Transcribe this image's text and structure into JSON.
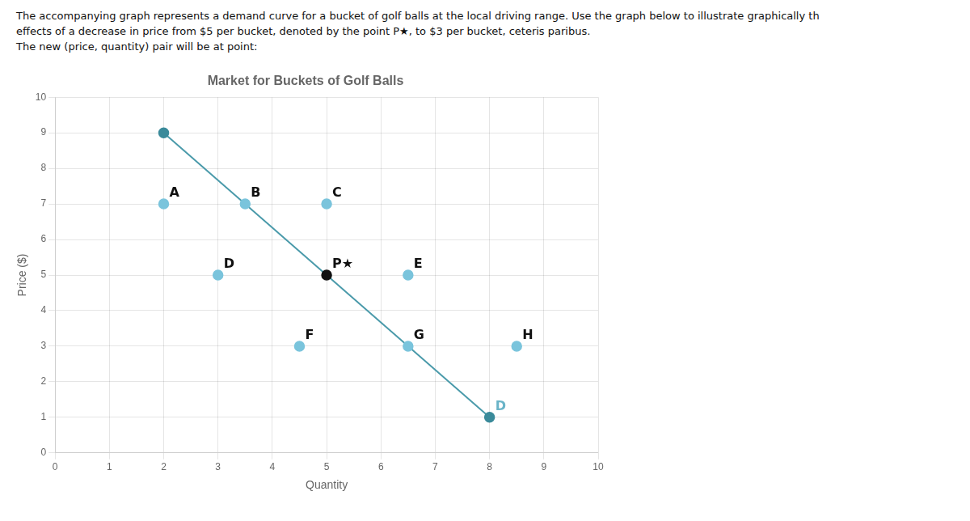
{
  "chart_data": {
    "type": "scatter",
    "title": "Market for Buckets of Golf Balls",
    "subtitle": [
      "The accompanying graph represents a demand curve for a bucket of golf balls at the local driving range. Use the graph below to illustrate graphically th",
      "effects of a decrease in price from $5 per bucket, denoted by the point P★, to $3 per bucket, ceteris paribus.",
      "The new (price, quantity) pair will be at point:"
    ],
    "xlabel": "Quantity",
    "ylabel": "Price ($)",
    "xlim": [
      0,
      10
    ],
    "ylim": [
      0,
      10
    ],
    "xticks": [
      0,
      1,
      2,
      3,
      4,
      5,
      6,
      7,
      8,
      9,
      10
    ],
    "yticks": [
      0,
      1,
      2,
      3,
      4,
      5,
      6,
      7,
      8,
      9,
      10
    ],
    "grid": true,
    "legend": "none",
    "series": [
      {
        "name": "D",
        "type": "line",
        "color": "#4a9aaa",
        "x": [
          2,
          8
        ],
        "values": [
          9,
          1
        ]
      },
      {
        "type": "scatter",
        "color": "#3a8a9a",
        "x": [
          2,
          8
        ],
        "values": [
          9,
          1
        ]
      },
      {
        "type": "scatter",
        "color": "#7ac4dc",
        "x": [
          2,
          3.5,
          5,
          3,
          6.5,
          4.5,
          6.5,
          8.5
        ],
        "values": [
          7,
          7,
          7,
          5,
          5,
          3,
          3,
          3
        ]
      },
      {
        "type": "scatter",
        "color": "#111111",
        "x": [
          5
        ],
        "values": [
          5
        ]
      }
    ],
    "annotations": [
      {
        "text": "A",
        "x": 2,
        "y": 7,
        "color": "#111111"
      },
      {
        "text": "B",
        "x": 3.5,
        "y": 7,
        "color": "#111111"
      },
      {
        "text": "C",
        "x": 5,
        "y": 7,
        "color": "#111111"
      },
      {
        "text": "D",
        "x": 3,
        "y": 5,
        "color": "#111111"
      },
      {
        "text": "E",
        "x": 6.5,
        "y": 5,
        "color": "#111111"
      },
      {
        "text": "F",
        "x": 4.5,
        "y": 3,
        "color": "#111111"
      },
      {
        "text": "G",
        "x": 6.5,
        "y": 3,
        "color": "#111111"
      },
      {
        "text": "H",
        "x": 8.5,
        "y": 3,
        "color": "#111111"
      },
      {
        "text": "D",
        "x": 8,
        "y": 1,
        "color": "#6ab4c8"
      },
      {
        "text": "P★",
        "x": 5,
        "y": 5,
        "color": "#111111"
      }
    ]
  }
}
